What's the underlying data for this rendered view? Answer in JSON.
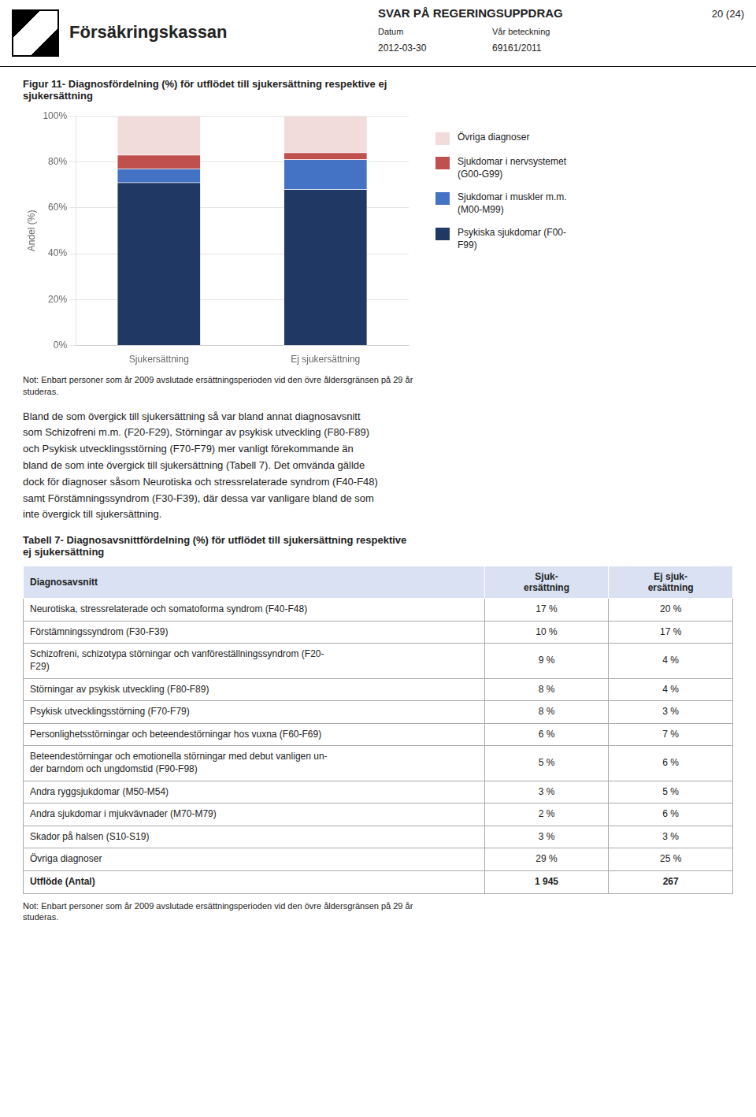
{
  "page": {
    "logo_text": "Försäkringskassan",
    "header_title": "SVAR PÅ REGERINGSUPPDRAG",
    "header_fields": [
      {
        "label": "Datum",
        "value": "2012-03-30"
      },
      {
        "label": "Vår beteckning",
        "value": "69161/2011"
      }
    ],
    "page_number": "20 (24)",
    "body": [
      "Bland de som övergick till sjukersättning så var bland annat diagnosavsnitt",
      "som Schizofreni m.m. (F20-F29), Störningar av psykisk utveckling (F80-F89)",
      "och Psykisk utvecklingsstörning (F70-F79) mer vanligt förekommande än",
      "bland de som inte övergick till sjukersättning (Tabell 7). Det omvända gällde",
      "dock för diagnoser såsom Neurotiska och stressrelaterade syndrom (F40-F48)",
      "samt Förstämningssyndrom (F30-F39), där dessa var vanligare bland de som",
      "inte övergick till sjukersättning."
    ]
  },
  "chart_data": [
    {
      "type": "bar",
      "title": "Figur 11- Diagnosfördelning (%) för utflödet till sjukersättning respektive ej\nsjukersättning",
      "categories": [
        "Sjukersättning",
        "Ej sjukersättning"
      ],
      "series": [
        {
          "name": "Psykiska sjukdomar (F00-\nF99)",
          "color": "#1F3864",
          "values": [
            71,
            68
          ]
        },
        {
          "name": "Sjukdomar i muskler m.m.\n(M00-M99)",
          "color": "#4472C4",
          "values": [
            6,
            13
          ]
        },
        {
          "name": "Sjukdomar i nervsystemet\n(G00-G99)",
          "color": "#C0504D",
          "values": [
            6,
            3
          ]
        },
        {
          "name": "Övriga diagnoser",
          "color": "#F2DCDB",
          "values": [
            17,
            16
          ]
        }
      ],
      "ylabel": "Andel (%)",
      "ylim": [
        0,
        100
      ],
      "yticks": [
        {
          "value": 0,
          "label": "0%"
        },
        {
          "value": 20,
          "label": "20%"
        },
        {
          "value": 40,
          "label": "40%"
        },
        {
          "value": 60,
          "label": "60%"
        },
        {
          "value": 80,
          "label": "80%"
        },
        {
          "value": 100,
          "label": "100%"
        }
      ],
      "stacked": true,
      "grid": "y",
      "legend": "right",
      "annotations": [
        "Not: Enbart personer som år 2009 avslutade ersättningsperioden vid den övre åldersgränsen på 29 år\nstuderas."
      ]
    },
    {
      "type": "table",
      "title": "Tabell 7- Diagnosavsnittfördelning (%) för utflödet till sjukersättning respektive\nej sjukersättning",
      "columns": [
        "Diagnosavsnitt",
        "Sjuk-\nersättning",
        "Ej sjuk-\nersättning"
      ],
      "rows": [
        [
          "Neurotiska, stressrelaterade och somatoforma syndrom (F40-F48)",
          "17 %",
          "20 %"
        ],
        [
          "Förstämningssyndrom (F30-F39)",
          "10 %",
          "17 %"
        ],
        [
          "Schizofreni, schizotypa störningar och vanföreställningssyndrom (F20-\nF29)",
          "9 %",
          "4 %"
        ],
        [
          "Störningar av psykisk utveckling (F80-F89)",
          "8 %",
          "4 %"
        ],
        [
          "Psykisk utvecklingsstörning (F70-F79)",
          "8 %",
          "3 %"
        ],
        [
          "Personlighetsstörningar och beteendestörningar hos vuxna (F60-F69)",
          "6 %",
          "7 %"
        ],
        [
          "Beteendestörningar och emotionella störningar med debut vanligen un-\nder barndom och ungdomstid (F90-F98)",
          "5 %",
          "6 %"
        ],
        [
          "Andra ryggsjukdomar (M50-M54)",
          "3 %",
          "5 %"
        ],
        [
          "Andra sjukdomar i mjukvävnader (M70-M79)",
          "2 %",
          "6 %"
        ],
        [
          "Skador på halsen (S10-S19)",
          "3 %",
          "3 %"
        ],
        [
          "Övriga diagnoser",
          "29 %",
          "25 %"
        ],
        [
          "Utflöde (Antal)",
          "1 945",
          "267"
        ]
      ],
      "annotations": [
        "Not: Enbart personer som år 2009 avslutade ersättningsperioden vid den övre åldersgränsen på 29 år\nstuderas."
      ]
    }
  ]
}
